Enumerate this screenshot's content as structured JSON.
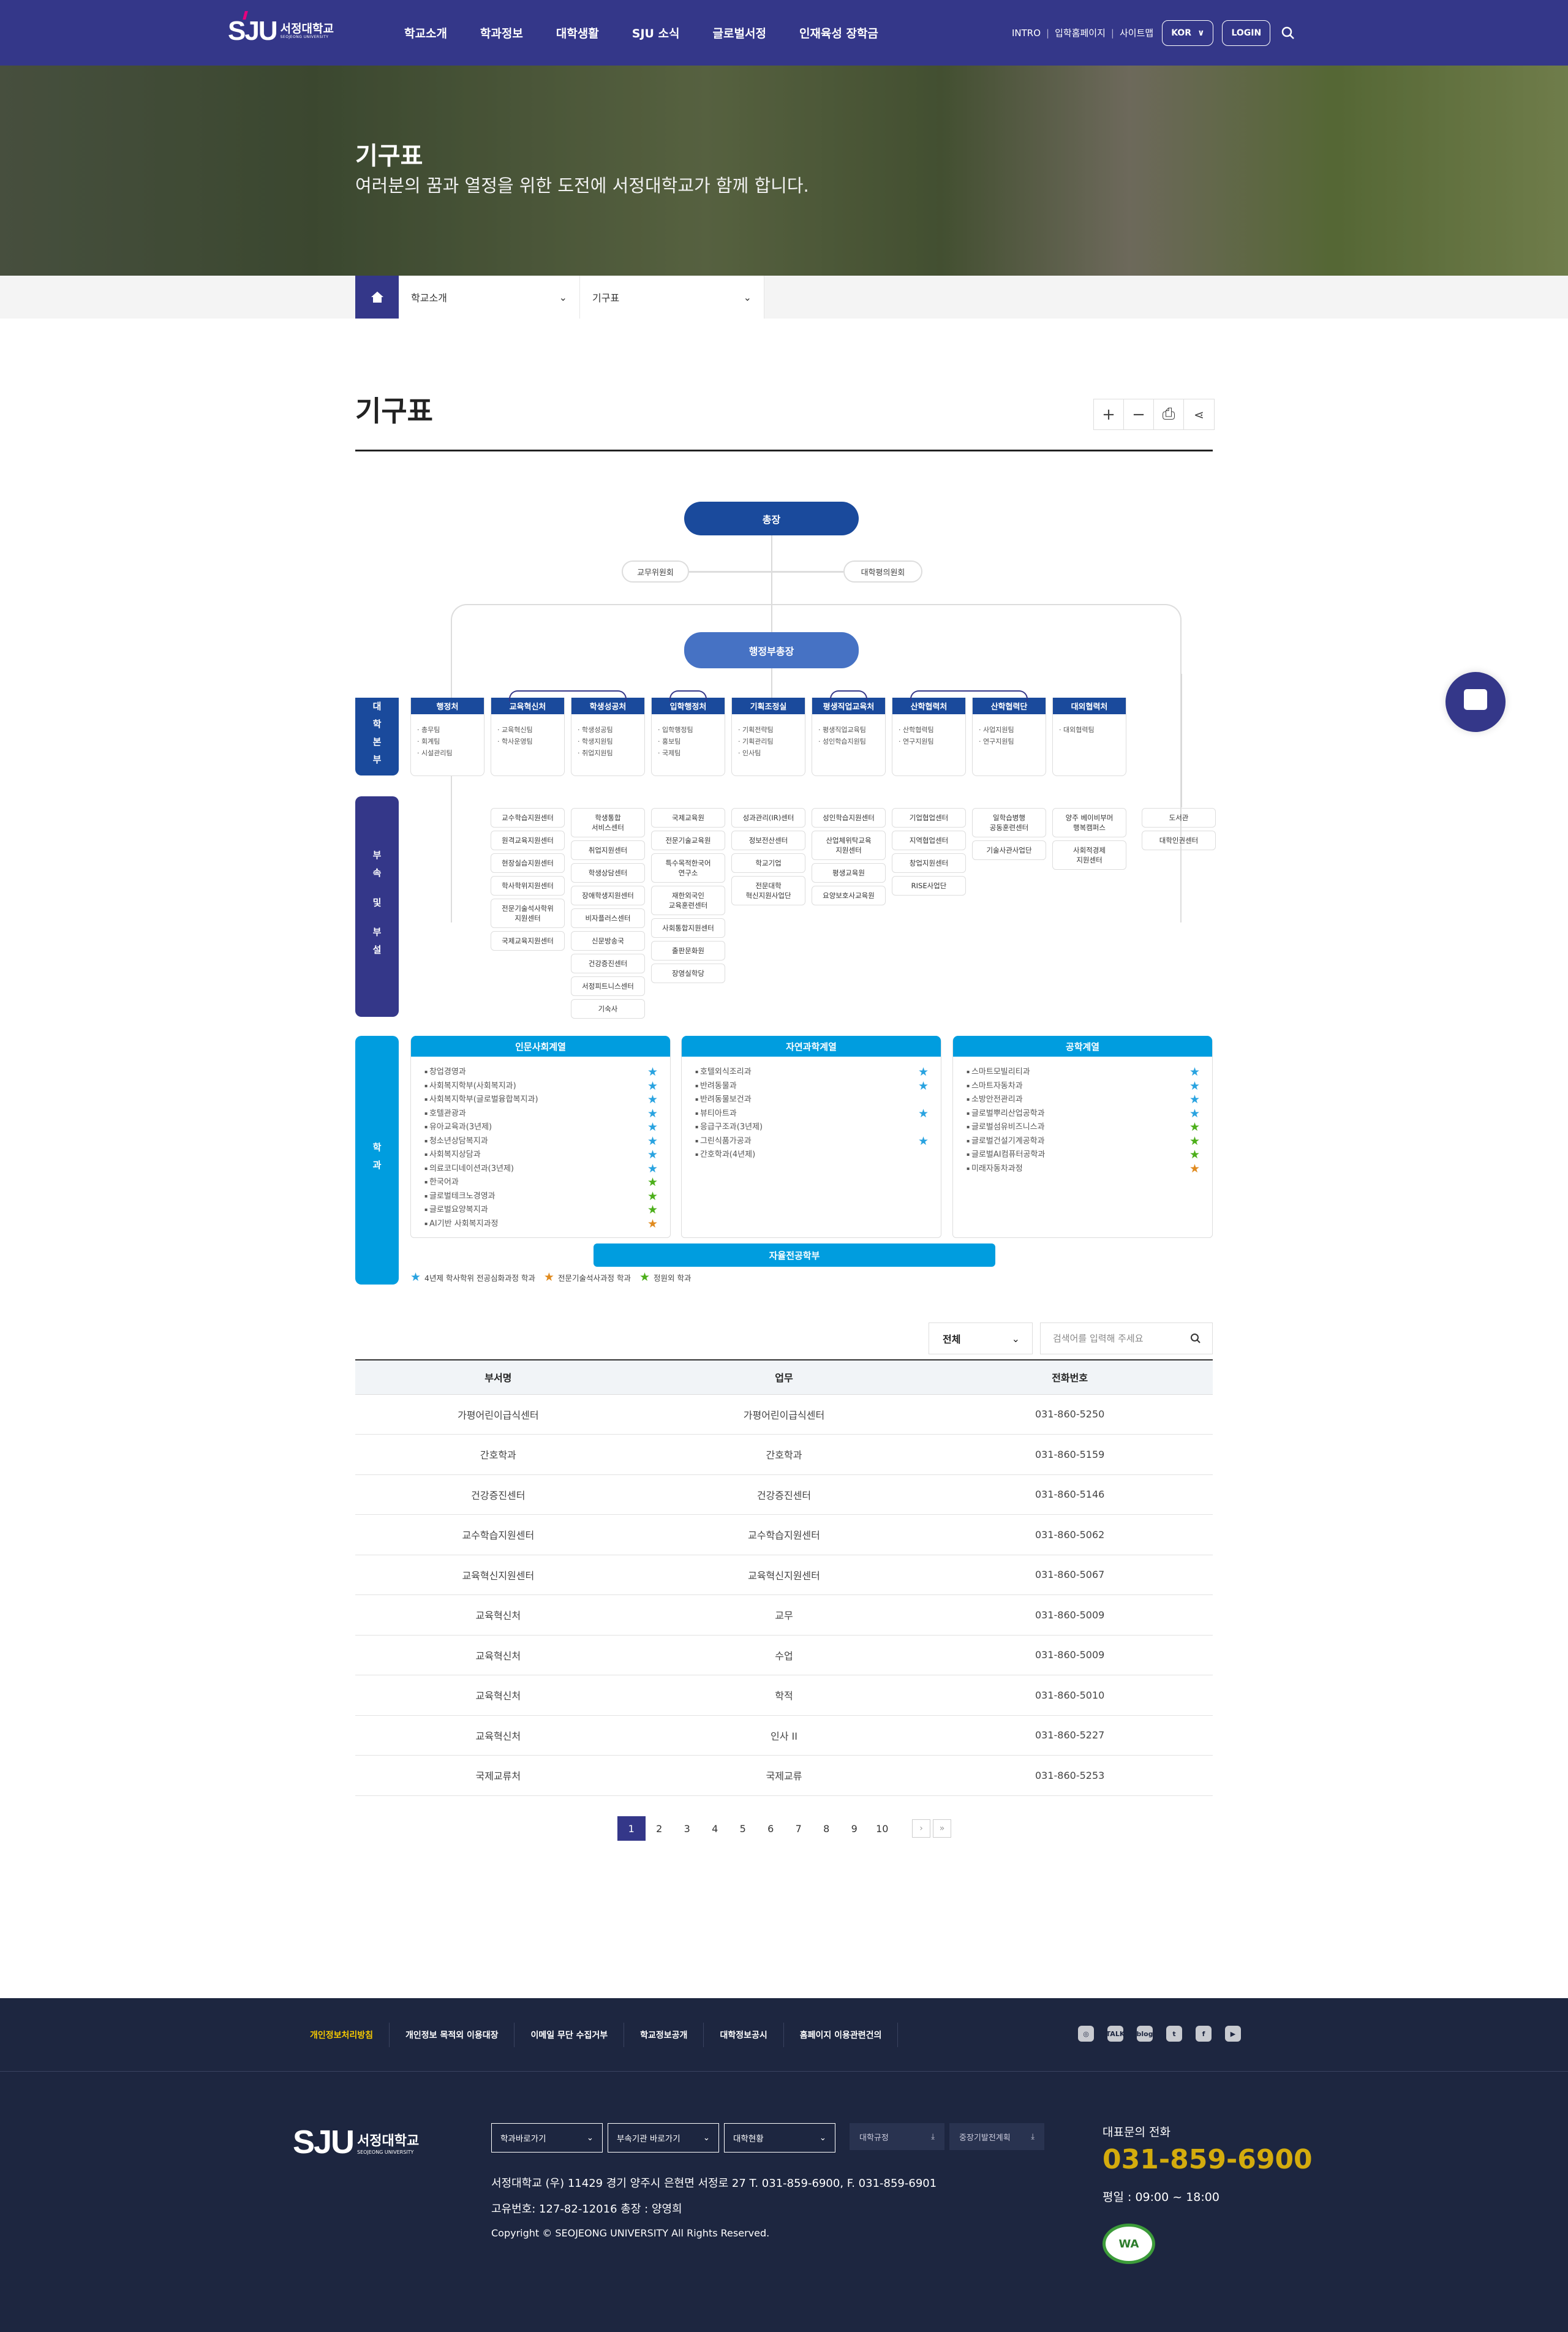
{
  "header": {
    "logo_text": "SJU",
    "logo_kname": "서정대학교",
    "logo_ename": "SEOJEONG UNIVERSITY",
    "nav": [
      "학교소개",
      "학과정보",
      "대학생활",
      "SJU 소식",
      "글로벌서정",
      "인재육성 장학금"
    ],
    "util": [
      "INTRO",
      "입학홈페이지",
      "사이트맵"
    ],
    "lang": "KOR",
    "login": "LOGIN",
    "brand_color": "#343789"
  },
  "hero": {
    "title": "기구표",
    "subtitle": "여러분의 꿈과 열정을 위한 도전에 서정대학교가 함께 합니다."
  },
  "breadcrumb": {
    "depth1": "학교소개",
    "depth2": "기구표"
  },
  "page": {
    "title": "기구표",
    "tools": [
      "zoom-in",
      "zoom-out",
      "print",
      "share"
    ]
  },
  "org": {
    "president": "총장",
    "committees": [
      "교무위원회",
      "대학평의원회"
    ],
    "vice": "행정부총장",
    "labels": {
      "hq": "대학본부",
      "affiliated": "부속 및 부설",
      "depts": "학과"
    },
    "hq": [
      {
        "name": "행정처",
        "teams": [
          "총무팀",
          "회계팀",
          "시설관리팀"
        ]
      },
      {
        "name": "교육혁신처",
        "teams": [
          "교육혁신팀",
          "학사운영팀"
        ]
      },
      {
        "name": "학생성공처",
        "teams": [
          "학생성공팀",
          "학생지원팀",
          "취업지원팀"
        ]
      },
      {
        "name": "입학행정처",
        "teams": [
          "입학행정팀",
          "홍보팀",
          "국제팀"
        ]
      },
      {
        "name": "기획조정실",
        "teams": [
          "기획전략팀",
          "기획관리팀",
          "인사팀"
        ]
      },
      {
        "name": "평생직업교육처",
        "teams": [
          "평생직업교육팀",
          "성인학습지원팀"
        ]
      },
      {
        "name": "산학협력처",
        "teams": [
          "산학협력팀",
          "연구지원팀"
        ]
      },
      {
        "name": "산학협력단",
        "teams": [
          "사업지원팀",
          "연구지원팀"
        ]
      },
      {
        "name": "대외협력처",
        "teams": [
          "대외협력팀"
        ]
      }
    ],
    "affiliated": [
      [],
      [
        "교수학습지원센터",
        "원격교육지원센터",
        "현장실습지원센터",
        "학사학위지원센터",
        "전문기술석사학위\n지원센터",
        "국제교육지원센터"
      ],
      [
        "학생통합\n서비스센터",
        "취업지원센터",
        "학생상담센터",
        "장애학생지원센터",
        "비자플러스센터",
        "신문방송국",
        "건강증진센터",
        "서정피트니스센터",
        "기숙사"
      ],
      [
        "국제교육원",
        "전문기술교육원",
        "특수목적한국어\n연구소",
        "재한외국인\n교육훈련센터",
        "사회통합지원센터",
        "출판문화원",
        "장영실학당"
      ],
      [
        "성과관리(IR)센터",
        "정보전산센터",
        "학교기업",
        "전문대학\n혁신지원사업단"
      ],
      [
        "성인학습지원센터",
        "산업체위탁교육\n지원센터",
        "평생교육원",
        "요양보호사교육원"
      ],
      [
        "기업협업센터",
        "지역협업센터",
        "창업지원센터",
        "RISE사업단"
      ],
      [
        "일학습병행\n공동훈련센터",
        "기술사관사업단"
      ],
      [
        "양주 베이비부머\n행복캠퍼스",
        "사회적경제\n지원센터"
      ],
      [
        "도서관",
        "대학인권센터"
      ]
    ],
    "departments": [
      {
        "name": "인문사회계열",
        "items": [
          {
            "n": "창업경영과",
            "s": "blue"
          },
          {
            "n": "사회복지학부(사회복지과)",
            "s": "blue"
          },
          {
            "n": "사회복지학부(글로벌융합복지과)",
            "s": "blue"
          },
          {
            "n": "호텔관광과",
            "s": "blue"
          },
          {
            "n": "유아교육과(3년제)",
            "s": "blue"
          },
          {
            "n": "청소년상담복지과",
            "s": "blue"
          },
          {
            "n": "사회복지상담과",
            "s": "blue"
          },
          {
            "n": "의료코디네이션과(3년제)",
            "s": "blue"
          },
          {
            "n": "한국어과",
            "s": "green"
          },
          {
            "n": "글로벌테크노경영과",
            "s": "green"
          },
          {
            "n": "글로벌요양복지과",
            "s": "green"
          },
          {
            "n": "AI기반 사회복지과정",
            "s": "orange"
          }
        ]
      },
      {
        "name": "자연과학계열",
        "items": [
          {
            "n": "호텔외식조리과",
            "s": "blue"
          },
          {
            "n": "반려동물과",
            "s": "blue"
          },
          {
            "n": "반려동물보건과",
            "s": ""
          },
          {
            "n": "뷰티아트과",
            "s": "blue"
          },
          {
            "n": "응급구조과(3년제)",
            "s": ""
          },
          {
            "n": "그린식품가공과",
            "s": "blue"
          },
          {
            "n": "간호학과(4년제)",
            "s": ""
          }
        ]
      },
      {
        "name": "공학계열",
        "items": [
          {
            "n": "스마트모빌리티과",
            "s": "blue"
          },
          {
            "n": "스마트자동차과",
            "s": "blue"
          },
          {
            "n": "소방안전관리과",
            "s": "blue"
          },
          {
            "n": "글로벌뿌리산업공학과",
            "s": "blue"
          },
          {
            "n": "글로벌섬유비즈니스과",
            "s": "green"
          },
          {
            "n": "글로벌건설기계공학과",
            "s": "green"
          },
          {
            "n": "글로벌AI컴퓨터공학과",
            "s": "green"
          },
          {
            "n": "미래자동차과정",
            "s": "orange"
          }
        ]
      }
    ],
    "free_major": "자율전공학부",
    "legend": [
      {
        "s": "blue",
        "label": "4년제 학사학위 전공심화과정 학과"
      },
      {
        "s": "orange",
        "label": "전문기술석사과정 학과"
      },
      {
        "s": "green",
        "label": "정원외 학과"
      }
    ],
    "colors": {
      "node": "#1a4a9c",
      "vice": "#4672c4",
      "affiliated": "#343789",
      "dept": "#009ddf",
      "star_blue": "#29a3e0",
      "star_green": "#4caf1a",
      "star_orange": "#e08a1e"
    }
  },
  "filter": {
    "select": "전체",
    "search_placeholder": "검색어를 입력해 주세요"
  },
  "table": {
    "headers": [
      "부서명",
      "업무",
      "전화번호"
    ],
    "rows": [
      [
        "가평어린이급식센터",
        "가평어린이급식센터",
        "031-860-5250"
      ],
      [
        "간호학과",
        "간호학과",
        "031-860-5159"
      ],
      [
        "건강증진센터",
        "건강증진센터",
        "031-860-5146"
      ],
      [
        "교수학습지원센터",
        "교수학습지원센터",
        "031-860-5062"
      ],
      [
        "교육혁신지원센터",
        "교육혁신지원센터",
        "031-860-5067"
      ],
      [
        "교육혁신처",
        "교무",
        "031-860-5009"
      ],
      [
        "교육혁신처",
        "수업",
        "031-860-5009"
      ],
      [
        "교육혁신처",
        "학적",
        "031-860-5010"
      ],
      [
        "교육혁신처",
        "인사 II",
        "031-860-5227"
      ],
      [
        "국제교류처",
        "국제교류",
        "031-860-5253"
      ]
    ]
  },
  "pagination": {
    "pages": [
      "1",
      "2",
      "3",
      "4",
      "5",
      "6",
      "7",
      "8",
      "9",
      "10"
    ],
    "current": "1",
    "next": "›",
    "last": "»"
  },
  "footer": {
    "links": [
      "개인정보처리방침",
      "개인정보 목적외 이용대장",
      "이메일 무단 수집거부",
      "학교정보공개",
      "대학정보공시",
      "홈페이지 이용관련건의"
    ],
    "sns": [
      "instagram",
      "kakaotalk",
      "blog",
      "twitter",
      "facebook",
      "youtube"
    ],
    "sns_labels": [
      "◎",
      "TALK",
      "blog",
      "t",
      "f",
      "▶"
    ],
    "selects": [
      "학과바로가기",
      "부속기관 바로가기",
      "대학현황"
    ],
    "buttons": [
      "대학규정",
      "중장기발전계획"
    ],
    "address": "서정대학교 (우) 11429 경기 양주시 은현면 서정로 27  T. 031-859-6900,  F. 031-859-6901",
    "bizno": "고유번호: 127-82-12016   총장 : 양영희",
    "copyright": "Copyright © SEOJEONG UNIVERSITY All Rights Reserved.",
    "call_label": "대표문의 전화",
    "call_number": "031-859-6900",
    "hours": "평일 : 09:00 ~ 18:00",
    "wa_mark": "WA",
    "highlight_color": "#f6c900",
    "phone_color": "#d4ac0d"
  }
}
